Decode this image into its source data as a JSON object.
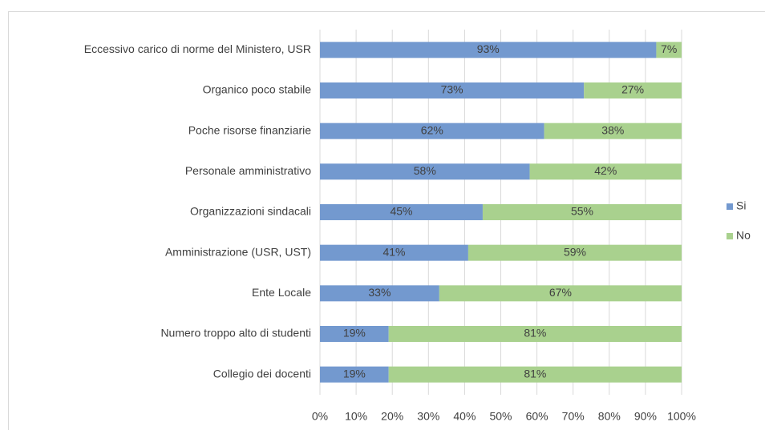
{
  "chart_data": {
    "type": "stacked-bar-horizontal",
    "categories": [
      "Eccessivo carico di norme del Ministero, USR",
      "Organico poco stabile",
      "Poche risorse finanziarie",
      "Personale amministrativo",
      "Organizzazioni sindacali",
      "Amministrazione (USR, UST)",
      "Ente Locale",
      "Numero troppo alto di studenti",
      "Collegio dei docenti"
    ],
    "series": [
      {
        "name": "Si",
        "color": "#7399cf",
        "values": [
          93,
          73,
          62,
          58,
          45,
          41,
          33,
          19,
          19
        ],
        "value_labels": [
          "93%",
          "73%",
          "62%",
          "58%",
          "45%",
          "41%",
          "33%",
          "19%",
          "19%"
        ]
      },
      {
        "name": "No",
        "color": "#a9d18e",
        "values": [
          7,
          27,
          38,
          42,
          55,
          59,
          67,
          81,
          81
        ],
        "value_labels": [
          "7%",
          "27%",
          "38%",
          "42%",
          "55%",
          "59%",
          "67%",
          "81%",
          "81%"
        ]
      }
    ],
    "xlim": [
      0,
      100
    ],
    "xticks": [
      {
        "value": 0,
        "label": "0%"
      },
      {
        "value": 10,
        "label": "10%"
      },
      {
        "value": 20,
        "label": "20%"
      },
      {
        "value": 30,
        "label": "30%"
      },
      {
        "value": 40,
        "label": "40%"
      },
      {
        "value": 50,
        "label": "50%"
      },
      {
        "value": 60,
        "label": "60%"
      },
      {
        "value": 70,
        "label": "70%"
      },
      {
        "value": 80,
        "label": "80%"
      },
      {
        "value": 90,
        "label": "90%"
      },
      {
        "value": 100,
        "label": "100%"
      }
    ],
    "grid": true,
    "legend": "right"
  }
}
